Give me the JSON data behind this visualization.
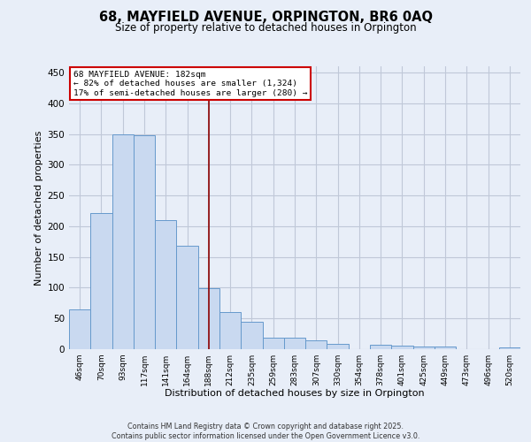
{
  "title_line1": "68, MAYFIELD AVENUE, ORPINGTON, BR6 0AQ",
  "title_line2": "Size of property relative to detached houses in Orpington",
  "xlabel": "Distribution of detached houses by size in Orpington",
  "ylabel": "Number of detached properties",
  "footnote": "Contains HM Land Registry data © Crown copyright and database right 2025.\nContains public sector information licensed under the Open Government Licence v3.0.",
  "categories": [
    "46sqm",
    "70sqm",
    "93sqm",
    "117sqm",
    "141sqm",
    "164sqm",
    "188sqm",
    "212sqm",
    "235sqm",
    "259sqm",
    "283sqm",
    "307sqm",
    "330sqm",
    "354sqm",
    "378sqm",
    "401sqm",
    "425sqm",
    "449sqm",
    "473sqm",
    "496sqm",
    "520sqm"
  ],
  "values": [
    65,
    222,
    350,
    348,
    210,
    168,
    99,
    60,
    44,
    18,
    18,
    14,
    9,
    0,
    7,
    6,
    4,
    5,
    0,
    0,
    3
  ],
  "bar_color": "#c9d9f0",
  "bar_edge_color": "#6699cc",
  "grid_color": "#c0c8d8",
  "bg_color": "#e8eef8",
  "property_label": "68 MAYFIELD AVENUE: 182sqm",
  "annotation_line1": "← 82% of detached houses are smaller (1,324)",
  "annotation_line2": "17% of semi-detached houses are larger (280) →",
  "vline_bin_index": 6,
  "vline_color": "#8b0000",
  "annotation_box_color": "#ffffff",
  "annotation_box_edge": "#cc0000",
  "ylim": [
    0,
    460
  ],
  "yticks": [
    0,
    50,
    100,
    150,
    200,
    250,
    300,
    350,
    400,
    450
  ]
}
